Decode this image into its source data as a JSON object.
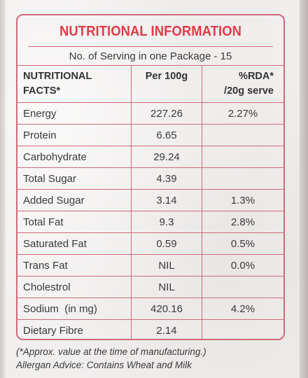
{
  "label": {
    "title": "NUTRITIONAL INFORMATION",
    "serving_line": "No. of Serving in one Package - 15",
    "columns": {
      "nutrient_line1": "NUTRITIONAL",
      "nutrient_line2": "FACTS*",
      "per100g": "Per 100g",
      "rda_line1": "%RDA*",
      "rda_line2": "/20g serve"
    },
    "rows": [
      {
        "name": "Energy",
        "per100g": "227.26",
        "rda": "2.27%"
      },
      {
        "name": "Protein",
        "per100g": "6.65",
        "rda": ""
      },
      {
        "name": "Carbohydrate",
        "per100g": "29.24",
        "rda": ""
      },
      {
        "name": "Total Sugar",
        "per100g": "4.39",
        "rda": ""
      },
      {
        "name": "Added Sugar",
        "per100g": "3.14",
        "rda": "1.3%"
      },
      {
        "name": "Total Fat",
        "per100g": "9.3",
        "rda": "2.8%"
      },
      {
        "name": "Saturated Fat",
        "per100g": "0.59",
        "rda": "0.5%"
      },
      {
        "name": "Trans Fat",
        "per100g": "NIL",
        "rda": "0.0%"
      },
      {
        "name": "Cholestrol",
        "per100g": "NIL",
        "rda": ""
      },
      {
        "name": "Sodium  (in mg)",
        "per100g": "420.16",
        "rda": "4.2%"
      },
      {
        "name": "Dietary Fibre",
        "per100g": "2.14",
        "rda": ""
      }
    ]
  },
  "footnote": {
    "line1": "(*Approx. value at the time of manufacturing.)",
    "line2": "Allergan Advice: Contains Wheat and Milk"
  },
  "colors": {
    "border": "#d06a78",
    "title": "#e23b48",
    "text": "#3a3a3a"
  }
}
